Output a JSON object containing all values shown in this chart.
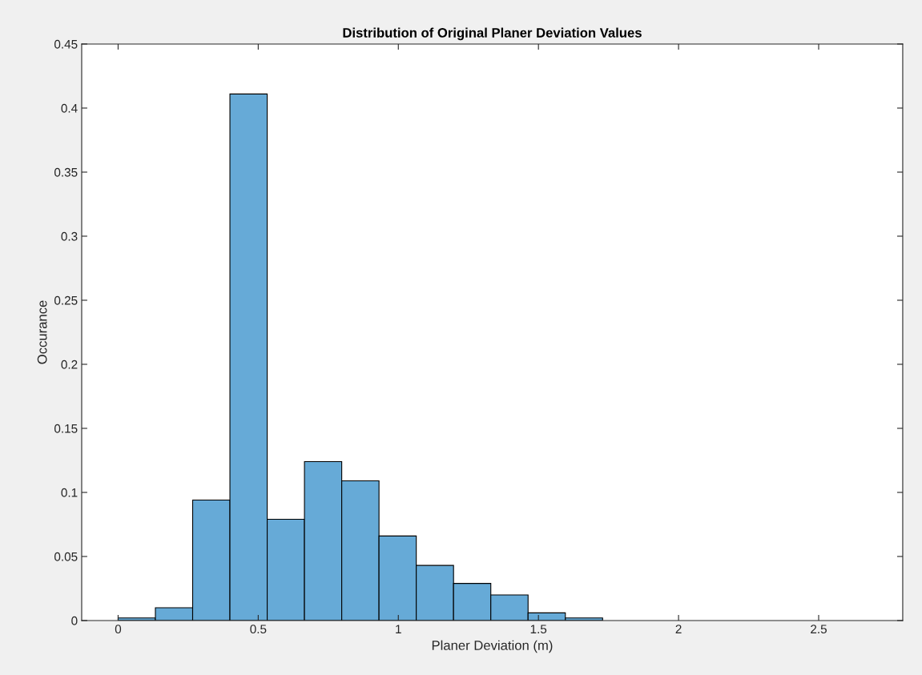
{
  "chart_data": {
    "type": "histogram",
    "title": "Distribution of Original Planer Deviation Values",
    "xlabel": "Planer Deviation (m)",
    "ylabel": "Occurance",
    "bins": [
      0,
      0.133,
      0.266,
      0.399,
      0.532,
      0.665,
      0.798,
      0.931,
      1.064,
      1.197,
      1.33,
      1.463,
      1.596,
      1.729
    ],
    "values": [
      0.002,
      0.01,
      0.094,
      0.411,
      0.079,
      0.124,
      0.109,
      0.066,
      0.043,
      0.029,
      0.02,
      0.006,
      0.002
    ],
    "color": "#66aad7",
    "xlim": [
      -0.13,
      2.8
    ],
    "xticks": [
      0,
      0.5,
      1,
      1.5,
      2,
      2.5
    ],
    "ylim": [
      0,
      0.45
    ],
    "yticks": [
      0,
      0.05,
      0.1,
      0.15,
      0.2,
      0.25,
      0.3,
      0.35,
      0.4,
      0.45
    ],
    "grid": false,
    "legend": false
  }
}
